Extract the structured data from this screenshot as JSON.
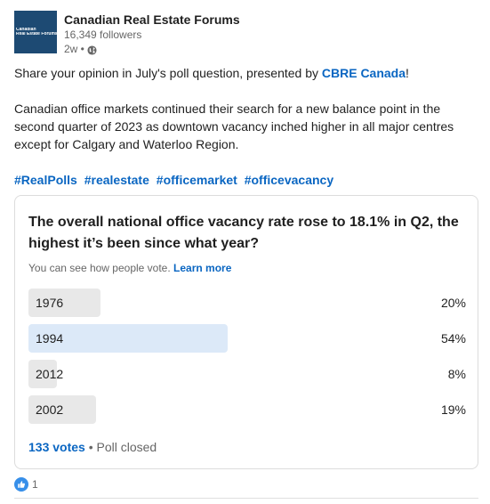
{
  "author": {
    "name": "Canadian Real Estate Forums",
    "followers": "16,349 followers",
    "time": "2w",
    "logo_lines": [
      "Canadian",
      "Real Estate Forums"
    ]
  },
  "post": {
    "intro_before": "Share your opinion in July's poll question, presented by ",
    "intro_link": "CBRE Canada",
    "intro_after": "!",
    "body": "Canadian office markets continued their search for a new balance point in the second quarter of 2023 as downtown vacancy inched higher in all major centres except for Calgary and Waterloo Region.",
    "hashtags": [
      "#RealPolls",
      "#realestate",
      "#officemarket",
      "#officevacancy"
    ]
  },
  "poll": {
    "question": "The overall national office vacancy rate rose to 18.1% in Q2, the highest it’s been since what year?",
    "note": "You can see how people vote.",
    "learn_more": "Learn more",
    "options": [
      {
        "label": "1976",
        "pct_text": "20%",
        "fill": 0.165,
        "selected": false
      },
      {
        "label": "1994",
        "pct_text": "54%",
        "fill": 0.455,
        "selected": true
      },
      {
        "label": "2012",
        "pct_text": "8%",
        "fill": 0.065,
        "selected": false
      },
      {
        "label": "2002",
        "pct_text": "19%",
        "fill": 0.155,
        "selected": false
      }
    ],
    "votes": "133 votes",
    "status": "• Poll closed"
  },
  "reactions": {
    "count": "1",
    "icon": "like-icon",
    "icon_color": "#378fe9"
  },
  "colors": {
    "link": "#0a66c2",
    "logo_bg": "#1d4a73",
    "bar": "#e8e8e8",
    "bar_selected": "#dce9f8"
  }
}
